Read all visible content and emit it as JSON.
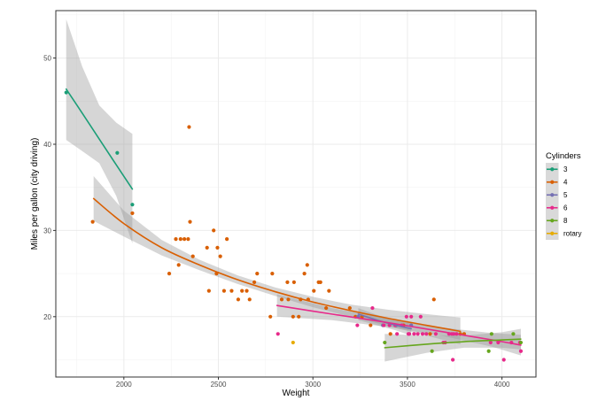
{
  "chart_data": {
    "type": "scatter",
    "xlabel": "Weight",
    "ylabel": "Miles per gallon (city driving)",
    "xlim": [
      1640,
      4180
    ],
    "ylim": [
      13,
      55.5
    ],
    "x_ticks": [
      2000,
      2500,
      3000,
      3500,
      4000
    ],
    "x_tick_labels": [
      "2000",
      "2500",
      "3000",
      "3500",
      "4000"
    ],
    "y_ticks": [
      20,
      30,
      40,
      50
    ],
    "y_tick_labels": [
      "20",
      "30",
      "40",
      "50"
    ],
    "x_minor": [
      1750,
      2250,
      2750,
      3250,
      3750
    ],
    "y_minor": [
      15,
      25,
      35,
      45,
      55
    ],
    "grid": true,
    "legend": {
      "title": "Cylinders",
      "position": "right"
    },
    "series": [
      {
        "name": "3",
        "color": "#1b9e77",
        "points": [
          [
            1695,
            46
          ],
          [
            1965,
            39
          ],
          [
            2045,
            33
          ]
        ],
        "fit": [
          [
            1695,
            46.4
          ],
          [
            1780,
            43.6
          ],
          [
            1870,
            40.6
          ],
          [
            1960,
            37.6
          ],
          [
            2045,
            34.8
          ]
        ],
        "band_upper": [
          [
            1695,
            54.5
          ],
          [
            1780,
            49.0
          ],
          [
            1870,
            44.5
          ],
          [
            1960,
            42.5
          ],
          [
            2045,
            41.2
          ]
        ],
        "band_lower": [
          [
            1695,
            40.5
          ],
          [
            1780,
            39.2
          ],
          [
            1870,
            37.8
          ],
          [
            1960,
            34.0
          ],
          [
            2045,
            28.5
          ]
        ]
      },
      {
        "name": "4",
        "color": "#d95f02",
        "points": [
          [
            1835,
            31
          ],
          [
            2045,
            32
          ],
          [
            2240,
            25
          ],
          [
            2275,
            29
          ],
          [
            2290,
            26
          ],
          [
            2300,
            29
          ],
          [
            2320,
            29
          ],
          [
            2340,
            29
          ],
          [
            2345,
            42
          ],
          [
            2350,
            31
          ],
          [
            2365,
            27
          ],
          [
            2440,
            28
          ],
          [
            2450,
            23
          ],
          [
            2475,
            30
          ],
          [
            2490,
            25
          ],
          [
            2495,
            28
          ],
          [
            2510,
            27
          ],
          [
            2530,
            23
          ],
          [
            2545,
            29
          ],
          [
            2570,
            23
          ],
          [
            2605,
            22
          ],
          [
            2625,
            23
          ],
          [
            2650,
            23
          ],
          [
            2665,
            22
          ],
          [
            2690,
            24
          ],
          [
            2705,
            25
          ],
          [
            2775,
            20
          ],
          [
            2785,
            25
          ],
          [
            2835,
            22
          ],
          [
            2865,
            24
          ],
          [
            2870,
            22
          ],
          [
            2895,
            20
          ],
          [
            2900,
            24
          ],
          [
            2925,
            20
          ],
          [
            2935,
            22
          ],
          [
            2955,
            25
          ],
          [
            2970,
            26
          ],
          [
            2975,
            22
          ],
          [
            3005,
            23
          ],
          [
            3030,
            24
          ],
          [
            3040,
            24
          ],
          [
            3070,
            21
          ],
          [
            3085,
            23
          ],
          [
            3195,
            21
          ],
          [
            3225,
            20
          ],
          [
            3260,
            20
          ],
          [
            3305,
            19
          ],
          [
            3410,
            18
          ],
          [
            3480,
            19
          ],
          [
            3620,
            18
          ],
          [
            3640,
            22
          ],
          [
            3780,
            18
          ],
          [
            3800,
            18
          ]
        ],
        "fit": [
          [
            1840,
            33.7
          ],
          [
            2000,
            30.8
          ],
          [
            2200,
            28.0
          ],
          [
            2400,
            26.0
          ],
          [
            2600,
            24.3
          ],
          [
            2800,
            22.9
          ],
          [
            3000,
            21.7
          ],
          [
            3200,
            20.7
          ],
          [
            3400,
            19.8
          ],
          [
            3600,
            19.0
          ],
          [
            3780,
            18.3
          ]
        ],
        "band_upper": [
          [
            1840,
            36.3
          ],
          [
            2000,
            32.3
          ],
          [
            2200,
            28.9
          ],
          [
            2400,
            26.6
          ],
          [
            2600,
            24.8
          ],
          [
            2800,
            23.4
          ],
          [
            3000,
            22.3
          ],
          [
            3200,
            21.4
          ],
          [
            3400,
            20.8
          ],
          [
            3600,
            20.3
          ],
          [
            3780,
            19.9
          ]
        ],
        "band_lower": [
          [
            1840,
            31.1
          ],
          [
            2000,
            29.3
          ],
          [
            2200,
            27.1
          ],
          [
            2400,
            25.4
          ],
          [
            2600,
            23.8
          ],
          [
            2800,
            22.4
          ],
          [
            3000,
            21.1
          ],
          [
            3200,
            20.0
          ],
          [
            3400,
            18.9
          ],
          [
            3600,
            17.8
          ],
          [
            3780,
            16.8
          ]
        ]
      },
      {
        "name": "5",
        "color": "#7570b3",
        "points": [
          [
            3240,
            20
          ],
          [
            3370,
            19
          ],
          [
            3440,
            19
          ],
          [
            3520,
            19
          ]
        ],
        "fit": [
          [
            3240,
            20.3
          ],
          [
            3340,
            19.6
          ],
          [
            3440,
            19.0
          ],
          [
            3520,
            18.6
          ]
        ],
        "band_upper": [
          [
            3240,
            21.0
          ],
          [
            3340,
            20.2
          ],
          [
            3440,
            19.6
          ],
          [
            3520,
            19.4
          ]
        ],
        "band_lower": [
          [
            3240,
            19.6
          ],
          [
            3340,
            19.0
          ],
          [
            3440,
            18.4
          ],
          [
            3520,
            17.8
          ]
        ]
      },
      {
        "name": "6",
        "color": "#e7298a",
        "points": [
          [
            2815,
            18
          ],
          [
            3235,
            19
          ],
          [
            3315,
            21
          ],
          [
            3375,
            19
          ],
          [
            3405,
            19
          ],
          [
            3435,
            19
          ],
          [
            3445,
            18
          ],
          [
            3470,
            19
          ],
          [
            3495,
            20
          ],
          [
            3505,
            18
          ],
          [
            3510,
            18
          ],
          [
            3520,
            20
          ],
          [
            3535,
            18
          ],
          [
            3555,
            18
          ],
          [
            3570,
            20
          ],
          [
            3580,
            18
          ],
          [
            3600,
            18
          ],
          [
            3650,
            18
          ],
          [
            3690,
            17
          ],
          [
            3700,
            17
          ],
          [
            3720,
            18
          ],
          [
            3735,
            18
          ],
          [
            3740,
            15
          ],
          [
            3745,
            18
          ],
          [
            3760,
            18
          ],
          [
            3940,
            17
          ],
          [
            3980,
            17
          ],
          [
            4010,
            15
          ],
          [
            4050,
            17
          ],
          [
            4095,
            17
          ],
          [
            4100,
            16
          ]
        ],
        "fit": [
          [
            2810,
            21.3
          ],
          [
            3100,
            20.3
          ],
          [
            3400,
            19.3
          ],
          [
            3700,
            18.2
          ],
          [
            3950,
            17.3
          ],
          [
            4100,
            16.7
          ]
        ],
        "band_upper": [
          [
            2810,
            22.6
          ],
          [
            3100,
            21.0
          ],
          [
            3400,
            19.8
          ],
          [
            3700,
            18.7
          ],
          [
            3950,
            18.1
          ],
          [
            4100,
            17.9
          ]
        ],
        "band_lower": [
          [
            2810,
            20.0
          ],
          [
            3100,
            19.6
          ],
          [
            3400,
            18.8
          ],
          [
            3700,
            17.7
          ],
          [
            3950,
            16.5
          ],
          [
            4100,
            15.5
          ]
        ]
      },
      {
        "name": "8",
        "color": "#66a61e",
        "points": [
          [
            3380,
            17
          ],
          [
            3630,
            16
          ],
          [
            3930,
            16
          ],
          [
            3945,
            18
          ],
          [
            4060,
            18
          ],
          [
            4100,
            17
          ]
        ],
        "fit": [
          [
            3380,
            16.4
          ],
          [
            3600,
            16.8
          ],
          [
            3800,
            17.1
          ],
          [
            4000,
            17.3
          ],
          [
            4100,
            17.4
          ]
        ],
        "band_upper": [
          [
            3380,
            18.0
          ],
          [
            3600,
            17.8
          ],
          [
            3800,
            17.8
          ],
          [
            4000,
            18.2
          ],
          [
            4100,
            18.6
          ]
        ],
        "band_lower": [
          [
            3380,
            14.8
          ],
          [
            3600,
            15.8
          ],
          [
            3800,
            16.4
          ],
          [
            4000,
            16.4
          ],
          [
            4100,
            16.2
          ]
        ]
      },
      {
        "name": "rotary",
        "color": "#e6ab02",
        "points": [
          [
            2895,
            17
          ]
        ]
      }
    ]
  }
}
